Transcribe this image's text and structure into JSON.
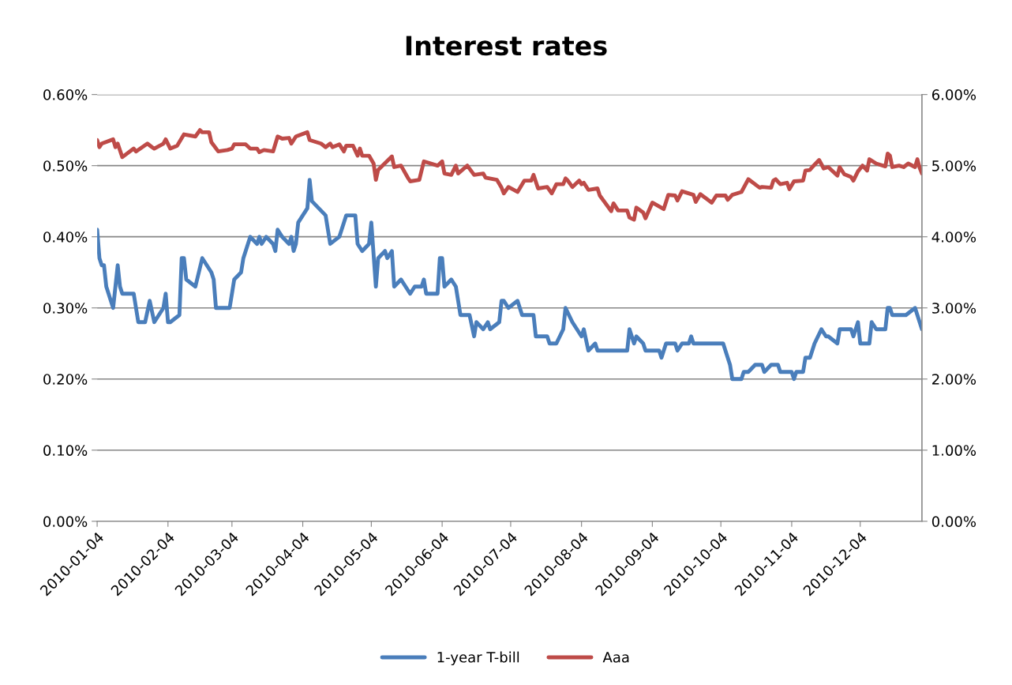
{
  "chart_data": {
    "type": "line",
    "title": "Interest rates",
    "grid": "y",
    "legend": "bottom",
    "line_style": "solid",
    "marker": "none",
    "xlim": [
      "2010-01-04",
      "2010-12-31"
    ],
    "xticks": [
      "2010-01-04",
      "2010-02-04",
      "2010-03-04",
      "2010-04-04",
      "2010-05-04",
      "2010-06-04",
      "2010-07-04",
      "2010-08-04",
      "2010-09-04",
      "2010-10-04",
      "2010-11-04",
      "2010-12-04"
    ],
    "ylim": [
      0,
      0.6
    ],
    "yticks": [
      {
        "value": 0,
        "label": "0.00%"
      },
      {
        "value": 0.1,
        "label": "0.10%"
      },
      {
        "value": 0.2,
        "label": "0.20%"
      },
      {
        "value": 0.3,
        "label": "0.30%"
      },
      {
        "value": 0.4,
        "label": "0.40%"
      },
      {
        "value": 0.5,
        "label": "0.50%"
      },
      {
        "value": 0.6,
        "label": "0.60%"
      }
    ],
    "y2lim": [
      0,
      6
    ],
    "y2ticks": [
      {
        "value": 0,
        "label": "0.00%"
      },
      {
        "value": 1,
        "label": "1.00%"
      },
      {
        "value": 2,
        "label": "2.00%"
      },
      {
        "value": 3,
        "label": "3.00%"
      },
      {
        "value": 4,
        "label": "4.00%"
      },
      {
        "value": 5,
        "label": "5.00%"
      },
      {
        "value": 6,
        "label": "6.00%"
      }
    ],
    "series": [
      {
        "name": "1-year T-bill",
        "color": "#4a7ebb",
        "x": [
          "2010-01-04",
          "2010-01-05",
          "2010-01-06",
          "2010-01-07",
          "2010-01-08",
          "2010-01-11",
          "2010-01-13",
          "2010-01-14",
          "2010-01-15",
          "2010-01-20",
          "2010-01-21",
          "2010-01-22",
          "2010-01-25",
          "2010-01-27",
          "2010-01-29",
          "2010-02-02",
          "2010-02-03",
          "2010-02-04",
          "2010-02-05",
          "2010-02-09",
          "2010-02-10",
          "2010-02-11",
          "2010-02-12",
          "2010-02-16",
          "2010-02-19",
          "2010-02-23",
          "2010-02-24",
          "2010-02-25",
          "2010-03-03",
          "2010-03-05",
          "2010-03-08",
          "2010-03-09",
          "2010-03-12",
          "2010-03-15",
          "2010-03-16",
          "2010-03-17",
          "2010-03-19",
          "2010-03-22",
          "2010-03-23",
          "2010-03-24",
          "2010-03-26",
          "2010-03-29",
          "2010-03-30",
          "2010-03-31",
          "2010-04-01",
          "2010-04-02",
          "2010-04-06",
          "2010-04-07",
          "2010-04-08",
          "2010-04-11",
          "2010-04-14",
          "2010-04-16",
          "2010-04-20",
          "2010-04-23",
          "2010-04-27",
          "2010-04-28",
          "2010-04-30",
          "2010-05-03",
          "2010-05-04",
          "2010-05-06",
          "2010-05-07",
          "2010-05-10",
          "2010-05-11",
          "2010-05-13",
          "2010-05-14",
          "2010-05-17",
          "2010-05-19",
          "2010-05-21",
          "2010-05-23",
          "2010-05-26",
          "2010-05-27",
          "2010-05-28",
          "2010-06-02",
          "2010-06-03",
          "2010-06-04",
          "2010-06-05",
          "2010-06-08",
          "2010-06-10",
          "2010-06-12",
          "2010-06-16",
          "2010-06-18",
          "2010-06-19",
          "2010-06-22",
          "2010-06-24",
          "2010-06-25",
          "2010-06-29",
          "2010-06-30",
          "2010-07-01",
          "2010-07-03",
          "2010-07-07",
          "2010-07-09",
          "2010-07-14",
          "2010-07-15",
          "2010-07-20",
          "2010-07-21",
          "2010-07-24",
          "2010-07-27",
          "2010-07-28",
          "2010-07-31",
          "2010-08-02",
          "2010-08-04",
          "2010-08-05",
          "2010-08-07",
          "2010-08-10",
          "2010-08-11",
          "2010-08-24",
          "2010-08-25",
          "2010-08-27",
          "2010-08-28",
          "2010-08-31",
          "2010-09-01",
          "2010-09-07",
          "2010-09-08",
          "2010-09-10",
          "2010-09-14",
          "2010-09-15",
          "2010-09-17",
          "2010-09-20",
          "2010-09-21",
          "2010-09-22",
          "2010-10-01",
          "2010-10-05",
          "2010-10-08",
          "2010-10-09",
          "2010-10-13",
          "2010-10-14",
          "2010-10-16",
          "2010-10-19",
          "2010-10-22",
          "2010-10-23",
          "2010-10-26",
          "2010-10-29",
          "2010-10-30",
          "2010-11-04",
          "2010-11-05",
          "2010-11-06",
          "2010-11-09",
          "2010-11-10",
          "2010-11-12",
          "2010-11-14",
          "2010-11-17",
          "2010-11-19",
          "2010-11-20",
          "2010-11-24",
          "2010-11-25",
          "2010-11-30",
          "2010-12-01",
          "2010-12-03",
          "2010-12-04",
          "2010-12-08",
          "2010-12-09",
          "2010-12-11",
          "2010-12-15",
          "2010-12-16",
          "2010-12-17",
          "2010-12-18",
          "2010-12-24",
          "2010-12-28",
          "2010-12-30",
          "2010-12-31"
        ],
        "values": [
          0.41,
          0.37,
          0.36,
          0.36,
          0.33,
          0.3,
          0.36,
          0.33,
          0.32,
          0.32,
          0.3,
          0.28,
          0.28,
          0.31,
          0.28,
          0.3,
          0.32,
          0.28,
          0.28,
          0.29,
          0.37,
          0.37,
          0.34,
          0.33,
          0.37,
          0.35,
          0.34,
          0.3,
          0.3,
          0.34,
          0.35,
          0.37,
          0.4,
          0.39,
          0.4,
          0.39,
          0.4,
          0.39,
          0.38,
          0.41,
          0.4,
          0.39,
          0.4,
          0.38,
          0.39,
          0.42,
          0.44,
          0.48,
          0.45,
          0.44,
          0.43,
          0.39,
          0.4,
          0.43,
          0.43,
          0.39,
          0.38,
          0.39,
          0.42,
          0.33,
          0.37,
          0.38,
          0.37,
          0.38,
          0.33,
          0.34,
          0.33,
          0.32,
          0.33,
          0.33,
          0.34,
          0.32,
          0.32,
          0.37,
          0.37,
          0.33,
          0.34,
          0.33,
          0.29,
          0.29,
          0.26,
          0.28,
          0.27,
          0.28,
          0.27,
          0.28,
          0.31,
          0.31,
          0.3,
          0.31,
          0.29,
          0.29,
          0.26,
          0.26,
          0.25,
          0.25,
          0.27,
          0.3,
          0.28,
          0.27,
          0.26,
          0.27,
          0.24,
          0.25,
          0.24,
          0.24,
          0.27,
          0.25,
          0.26,
          0.25,
          0.24,
          0.24,
          0.23,
          0.25,
          0.25,
          0.24,
          0.25,
          0.25,
          0.26,
          0.25,
          0.25,
          0.25,
          0.22,
          0.2,
          0.2,
          0.21,
          0.21,
          0.22,
          0.22,
          0.21,
          0.22,
          0.22,
          0.21,
          0.21,
          0.2,
          0.21,
          0.21,
          0.23,
          0.23,
          0.25,
          0.27,
          0.26,
          0.26,
          0.25,
          0.27,
          0.27,
          0.26,
          0.28,
          0.25,
          0.25,
          0.28,
          0.27,
          0.27,
          0.3,
          0.3,
          0.29,
          0.29,
          0.3,
          0.28,
          0.27
        ]
      },
      {
        "name": "Aaa",
        "color": "#be4b48",
        "axis": "y2",
        "x": [
          "2010-01-04",
          "2010-01-05",
          "2010-01-06",
          "2010-01-11",
          "2010-01-12",
          "2010-01-13",
          "2010-01-15",
          "2010-01-20",
          "2010-01-21",
          "2010-01-26",
          "2010-01-28",
          "2010-01-29",
          "2010-02-02",
          "2010-02-03",
          "2010-02-05",
          "2010-02-08",
          "2010-02-11",
          "2010-02-16",
          "2010-02-18",
          "2010-02-19",
          "2010-02-22",
          "2010-02-23",
          "2010-02-26",
          "2010-03-02",
          "2010-03-04",
          "2010-03-05",
          "2010-03-10",
          "2010-03-12",
          "2010-03-15",
          "2010-03-16",
          "2010-03-18",
          "2010-03-22",
          "2010-03-24",
          "2010-03-26",
          "2010-03-29",
          "2010-03-30",
          "2010-04-01",
          "2010-04-06",
          "2010-04-07",
          "2010-04-12",
          "2010-04-14",
          "2010-04-16",
          "2010-04-17",
          "2010-04-20",
          "2010-04-22",
          "2010-04-23",
          "2010-04-26",
          "2010-04-28",
          "2010-04-29",
          "2010-04-30",
          "2010-05-03",
          "2010-05-05",
          "2010-05-06",
          "2010-05-07",
          "2010-05-13",
          "2010-05-14",
          "2010-05-17",
          "2010-05-20",
          "2010-05-21",
          "2010-05-25",
          "2010-05-27",
          "2010-06-02",
          "2010-06-04",
          "2010-06-05",
          "2010-06-08",
          "2010-06-10",
          "2010-06-11",
          "2010-06-15",
          "2010-06-18",
          "2010-06-22",
          "2010-06-23",
          "2010-06-28",
          "2010-06-30",
          "2010-07-01",
          "2010-07-03",
          "2010-07-07",
          "2010-07-10",
          "2010-07-13",
          "2010-07-14",
          "2010-07-16",
          "2010-07-20",
          "2010-07-22",
          "2010-07-24",
          "2010-07-27",
          "2010-07-28",
          "2010-07-29",
          "2010-07-31",
          "2010-08-03",
          "2010-08-04",
          "2010-08-05",
          "2010-08-07",
          "2010-08-11",
          "2010-08-12",
          "2010-08-17",
          "2010-08-18",
          "2010-08-20",
          "2010-08-24",
          "2010-08-25",
          "2010-08-27",
          "2010-08-28",
          "2010-08-31",
          "2010-09-01",
          "2010-09-04",
          "2010-09-09",
          "2010-09-11",
          "2010-09-14",
          "2010-09-15",
          "2010-09-17",
          "2010-09-22",
          "2010-09-23",
          "2010-09-25",
          "2010-09-30",
          "2010-10-02",
          "2010-10-06",
          "2010-10-07",
          "2010-10-09",
          "2010-10-13",
          "2010-10-16",
          "2010-10-21",
          "2010-10-22",
          "2010-10-26",
          "2010-10-27",
          "2010-10-28",
          "2010-10-30",
          "2010-11-02",
          "2010-11-03",
          "2010-11-05",
          "2010-11-09",
          "2010-11-10",
          "2010-11-12",
          "2010-11-13",
          "2010-11-16",
          "2010-11-18",
          "2010-11-20",
          "2010-11-24",
          "2010-11-25",
          "2010-11-27",
          "2010-11-30",
          "2010-12-01",
          "2010-12-03",
          "2010-12-05",
          "2010-12-07",
          "2010-12-08",
          "2010-12-11",
          "2010-12-15",
          "2010-12-16",
          "2010-12-17",
          "2010-12-18",
          "2010-12-21",
          "2010-12-23",
          "2010-12-25",
          "2010-12-28",
          "2010-12-29",
          "2010-12-30",
          "2010-12-31"
        ],
        "values": [
          5.36,
          5.26,
          5.31,
          5.37,
          5.26,
          5.31,
          5.12,
          5.24,
          5.2,
          5.31,
          5.26,
          5.24,
          5.31,
          5.37,
          5.24,
          5.28,
          5.44,
          5.41,
          5.5,
          5.47,
          5.47,
          5.33,
          5.2,
          5.22,
          5.24,
          5.3,
          5.3,
          5.24,
          5.24,
          5.19,
          5.22,
          5.2,
          5.41,
          5.38,
          5.39,
          5.31,
          5.41,
          5.47,
          5.36,
          5.31,
          5.26,
          5.31,
          5.26,
          5.3,
          5.2,
          5.28,
          5.28,
          5.14,
          5.24,
          5.14,
          5.14,
          5.03,
          4.8,
          4.94,
          5.13,
          4.98,
          5.0,
          4.83,
          4.78,
          4.8,
          5.06,
          5.0,
          5.06,
          4.89,
          4.87,
          5.0,
          4.89,
          5.0,
          4.87,
          4.89,
          4.83,
          4.8,
          4.69,
          4.61,
          4.7,
          4.63,
          4.79,
          4.79,
          4.87,
          4.68,
          4.7,
          4.61,
          4.74,
          4.74,
          4.82,
          4.79,
          4.7,
          4.79,
          4.74,
          4.76,
          4.66,
          4.68,
          4.58,
          4.36,
          4.47,
          4.37,
          4.37,
          4.27,
          4.24,
          4.41,
          4.34,
          4.26,
          4.48,
          4.39,
          4.59,
          4.58,
          4.51,
          4.64,
          4.59,
          4.49,
          4.6,
          4.48,
          4.58,
          4.58,
          4.52,
          4.59,
          4.63,
          4.81,
          4.69,
          4.7,
          4.69,
          4.79,
          4.81,
          4.74,
          4.76,
          4.67,
          4.78,
          4.79,
          4.93,
          4.94,
          4.98,
          5.08,
          4.96,
          4.98,
          4.86,
          4.98,
          4.88,
          4.84,
          4.79,
          4.92,
          5.0,
          4.93,
          5.09,
          5.03,
          4.99,
          5.17,
          5.14,
          4.98,
          5.0,
          4.98,
          5.03,
          4.98,
          5.09,
          4.97,
          4.89
        ]
      }
    ]
  }
}
